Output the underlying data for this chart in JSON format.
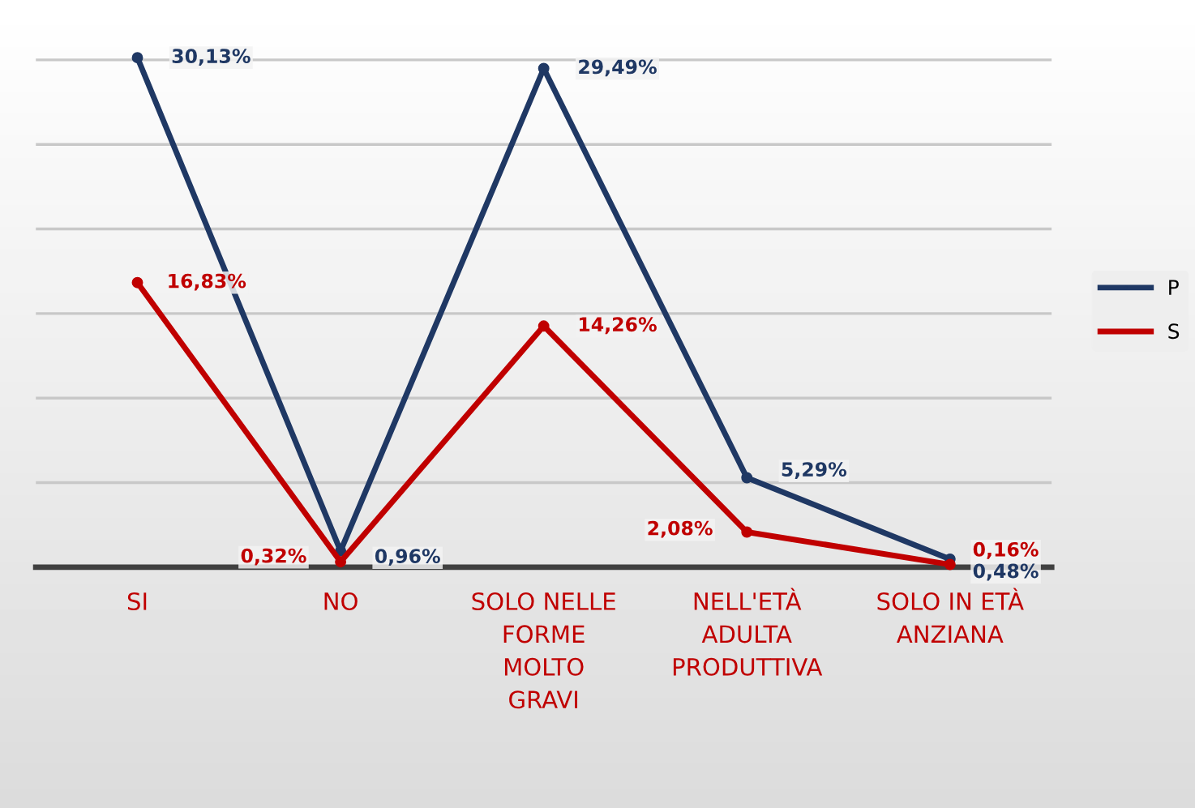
{
  "chart_data": {
    "type": "line",
    "categories": [
      "SI",
      "NO",
      "SOLO NELLE\nFORME\nMOLTO\nGRAVI",
      "NELL'ETÀ\nADULTA\nPRODUTTIVA",
      "SOLO IN ETÀ\nANZIANA"
    ],
    "series": [
      {
        "name": "P",
        "color": "#1f3864",
        "values": [
          30.13,
          0.96,
          29.49,
          5.29,
          0.48
        ],
        "value_labels": [
          "30,13%",
          "0,96%",
          "29,49%",
          "5,29%",
          "0,48%"
        ]
      },
      {
        "name": "S",
        "color": "#c00000",
        "values": [
          16.83,
          0.32,
          14.26,
          2.08,
          0.16
        ],
        "value_labels": [
          "16,83%",
          "0,32%",
          "14,26%",
          "2,08%",
          "0,16%"
        ]
      }
    ],
    "tick_labels": "x",
    "grid": "y",
    "legend": "right",
    "marker": "circle",
    "line_style": "solid"
  }
}
